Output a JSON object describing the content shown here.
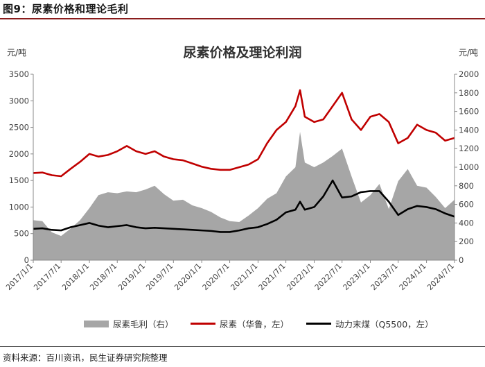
{
  "figure_title": "图9：尿素价格和理论毛利",
  "source_note": "资料来源：百川资讯，民生证券研究院整理",
  "colors": {
    "urea": "#c00000",
    "coal": "#000000",
    "margin": "#a6a6a6",
    "frame_rule": "#8a1c1c"
  },
  "chart_data": {
    "type": "line",
    "title": "尿素价格及理论利润",
    "ylabel_left": "元/吨",
    "ylabel_right": "元/吨",
    "ylim_left": [
      0,
      3500
    ],
    "ylim_right": [
      0,
      2000
    ],
    "yticks_left": [
      0,
      500,
      1000,
      1500,
      2000,
      2500,
      3000,
      3500
    ],
    "yticks_right": [
      0,
      200,
      400,
      600,
      800,
      1000,
      1200,
      1400,
      1600,
      1800,
      2000
    ],
    "xticks": [
      "2017/1/1",
      "2017/7/1",
      "2018/1/1",
      "2018/7/1",
      "2019/1/1",
      "2019/7/1",
      "2020/1/1",
      "2020/7/1",
      "2021/1/1",
      "2021/7/1",
      "2022/1/1",
      "2022/7/1",
      "2023/1/1",
      "2023/7/1",
      "2024/1/1",
      "2024/7/1"
    ],
    "grid": false,
    "legend_position": "bottom",
    "series": [
      {
        "name": "尿素毛利（右）",
        "axis": "right",
        "kind": "area",
        "x": [
          "2017/1/1",
          "2017/3/1",
          "2017/5/1",
          "2017/7/1",
          "2017/9/1",
          "2017/11/1",
          "2018/1/1",
          "2018/3/1",
          "2018/5/1",
          "2018/7/1",
          "2018/9/1",
          "2018/11/1",
          "2019/1/1",
          "2019/3/1",
          "2019/5/1",
          "2019/7/1",
          "2019/9/1",
          "2019/11/1",
          "2020/1/1",
          "2020/3/1",
          "2020/5/1",
          "2020/7/1",
          "2020/9/1",
          "2020/11/1",
          "2021/1/1",
          "2021/3/1",
          "2021/5/1",
          "2021/7/1",
          "2021/9/1",
          "2021/10/1",
          "2021/11/1",
          "2022/1/1",
          "2022/3/1",
          "2022/5/1",
          "2022/7/1",
          "2022/9/1",
          "2022/11/1",
          "2023/1/1",
          "2023/3/1",
          "2023/5/1",
          "2023/7/1",
          "2023/9/1",
          "2023/11/1",
          "2024/1/1",
          "2024/3/1",
          "2024/5/1",
          "2024/7/1"
        ],
        "values": [
          430,
          420,
          300,
          260,
          340,
          430,
          560,
          700,
          730,
          720,
          740,
          730,
          760,
          800,
          710,
          640,
          650,
          590,
          560,
          520,
          460,
          420,
          410,
          480,
          560,
          660,
          720,
          900,
          1000,
          1380,
          1050,
          1000,
          1050,
          1120,
          1200,
          900,
          620,
          700,
          820,
          550,
          850,
          980,
          800,
          780,
          680,
          560,
          650
        ]
      },
      {
        "name": "尿素（华鲁，左）",
        "axis": "left",
        "kind": "line",
        "x": [
          "2017/1/1",
          "2017/3/1",
          "2017/5/1",
          "2017/7/1",
          "2017/9/1",
          "2017/11/1",
          "2018/1/1",
          "2018/3/1",
          "2018/5/1",
          "2018/7/1",
          "2018/9/1",
          "2018/11/1",
          "2019/1/1",
          "2019/3/1",
          "2019/5/1",
          "2019/7/1",
          "2019/9/1",
          "2019/11/1",
          "2020/1/1",
          "2020/3/1",
          "2020/5/1",
          "2020/7/1",
          "2020/9/1",
          "2020/11/1",
          "2021/1/1",
          "2021/3/1",
          "2021/5/1",
          "2021/7/1",
          "2021/9/1",
          "2021/10/1",
          "2021/11/1",
          "2022/1/1",
          "2022/3/1",
          "2022/5/1",
          "2022/7/1",
          "2022/9/1",
          "2022/11/1",
          "2023/1/1",
          "2023/3/1",
          "2023/5/1",
          "2023/7/1",
          "2023/9/1",
          "2023/11/1",
          "2024/1/1",
          "2024/3/1",
          "2024/5/1",
          "2024/7/1"
        ],
        "values": [
          1640,
          1650,
          1600,
          1580,
          1720,
          1850,
          2000,
          1950,
          1980,
          2050,
          2150,
          2050,
          2000,
          2050,
          1950,
          1900,
          1880,
          1820,
          1760,
          1720,
          1700,
          1700,
          1750,
          1800,
          1900,
          2200,
          2450,
          2600,
          2900,
          3200,
          2700,
          2600,
          2650,
          2900,
          3150,
          2650,
          2450,
          2700,
          2750,
          2600,
          2200,
          2300,
          2550,
          2450,
          2400,
          2250,
          2300
        ]
      },
      {
        "name": "动力末煤（Q5500，左）",
        "axis": "left",
        "kind": "line",
        "x": [
          "2017/1/1",
          "2017/3/1",
          "2017/5/1",
          "2017/7/1",
          "2017/9/1",
          "2017/11/1",
          "2018/1/1",
          "2018/3/1",
          "2018/5/1",
          "2018/7/1",
          "2018/9/1",
          "2018/11/1",
          "2019/1/1",
          "2019/3/1",
          "2019/5/1",
          "2019/7/1",
          "2019/9/1",
          "2019/11/1",
          "2020/1/1",
          "2020/3/1",
          "2020/5/1",
          "2020/7/1",
          "2020/9/1",
          "2020/11/1",
          "2021/1/1",
          "2021/3/1",
          "2021/5/1",
          "2021/7/1",
          "2021/9/1",
          "2021/10/1",
          "2021/11/1",
          "2022/1/1",
          "2022/3/1",
          "2022/5/1",
          "2022/7/1",
          "2022/9/1",
          "2022/11/1",
          "2023/1/1",
          "2023/3/1",
          "2023/5/1",
          "2023/7/1",
          "2023/9/1",
          "2023/11/1",
          "2024/1/1",
          "2024/3/1",
          "2024/5/1",
          "2024/7/1"
        ],
        "values": [
          590,
          600,
          570,
          560,
          620,
          660,
          700,
          650,
          620,
          640,
          660,
          620,
          600,
          610,
          600,
          590,
          580,
          570,
          560,
          550,
          530,
          530,
          560,
          600,
          620,
          680,
          760,
          900,
          950,
          1100,
          950,
          1000,
          1200,
          1500,
          1180,
          1200,
          1280,
          1300,
          1300,
          1100,
          850,
          960,
          1020,
          1000,
          960,
          880,
          820
        ]
      }
    ]
  }
}
